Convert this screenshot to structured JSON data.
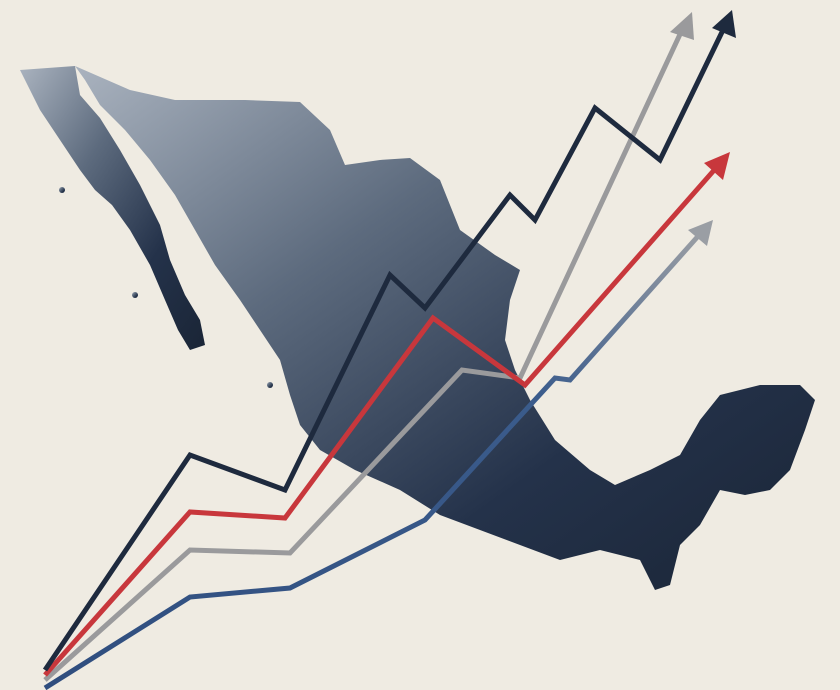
{
  "colors": {
    "background": "#efebe2",
    "map_light": "#9aa5b3",
    "map_dark": "#1c2939",
    "line_navy": "#1e2a3e",
    "line_red": "#c8373c",
    "line_gray": "#9a9a9c",
    "line_blue": "#2f4d7e"
  },
  "icons": [
    "mexico-map",
    "trend-arrow"
  ]
}
